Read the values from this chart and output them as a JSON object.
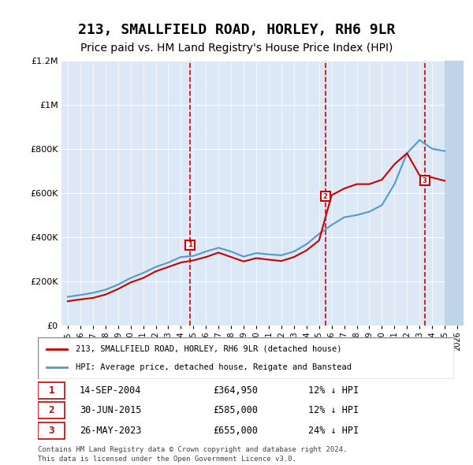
{
  "title": "213, SMALLFIELD ROAD, HORLEY, RH6 9LR",
  "subtitle": "Price paid vs. HM Land Registry's House Price Index (HPI)",
  "title_fontsize": 13,
  "subtitle_fontsize": 10,
  "ylabel_labels": [
    "£0",
    "£200K",
    "£400K",
    "£600K",
    "£800K",
    "£1M",
    "£1.2M"
  ],
  "ylabel_values": [
    0,
    200000,
    400000,
    600000,
    800000,
    1000000,
    1200000
  ],
  "ylim": [
    0,
    1200000
  ],
  "xlim_start": 1994.5,
  "xlim_end": 2026.5,
  "background_color": "#ffffff",
  "plot_bg_color": "#dce8f5",
  "hatch_color": "#c0d4e8",
  "grid_color": "#ffffff",
  "red_line_color": "#cc0000",
  "blue_line_color": "#5599cc",
  "transaction_marker_color": "#cc0000",
  "transactions": [
    {
      "year": 2004.71,
      "price": 364950,
      "label": "1",
      "date": "14-SEP-2004",
      "price_str": "£364,950",
      "hpi_pct": "12% ↓ HPI"
    },
    {
      "year": 2015.5,
      "price": 585000,
      "label": "2",
      "date": "30-JUN-2015",
      "price_str": "£585,000",
      "hpi_pct": "12% ↓ HPI"
    },
    {
      "year": 2023.4,
      "price": 655000,
      "label": "3",
      "date": "26-MAY-2023",
      "price_str": "£655,000",
      "hpi_pct": "24% ↓ HPI"
    }
  ],
  "legend_line1": "213, SMALLFIELD ROAD, HORLEY, RH6 9LR (detached house)",
  "legend_line2": "HPI: Average price, detached house, Reigate and Banstead",
  "footer_line1": "Contains HM Land Registry data © Crown copyright and database right 2024.",
  "footer_line2": "This data is licensed under the Open Government Licence v3.0.",
  "hpi_years": [
    1995,
    1996,
    1997,
    1998,
    1999,
    2000,
    2001,
    2002,
    2003,
    2004,
    2005,
    2006,
    2007,
    2008,
    2009,
    2010,
    2011,
    2012,
    2013,
    2014,
    2015,
    2016,
    2017,
    2018,
    2019,
    2020,
    2021,
    2022,
    2023,
    2024,
    2025
  ],
  "hpi_values": [
    130000,
    138000,
    148000,
    162000,
    185000,
    215000,
    238000,
    265000,
    285000,
    310000,
    315000,
    335000,
    352000,
    335000,
    312000,
    328000,
    322000,
    318000,
    335000,
    368000,
    415000,
    455000,
    490000,
    500000,
    515000,
    545000,
    640000,
    780000,
    840000,
    800000,
    790000
  ],
  "red_years": [
    1995,
    1996,
    1997,
    1998,
    1999,
    2000,
    2001,
    2002,
    2003,
    2004,
    2005,
    2006,
    2007,
    2008,
    2009,
    2010,
    2011,
    2012,
    2013,
    2014,
    2015,
    2016,
    2017,
    2018,
    2019,
    2020,
    2021,
    2022,
    2023,
    2024,
    2025
  ],
  "red_values": [
    110000,
    118000,
    125000,
    140000,
    165000,
    195000,
    215000,
    245000,
    265000,
    285000,
    295000,
    310000,
    330000,
    310000,
    290000,
    305000,
    298000,
    292000,
    310000,
    340000,
    385000,
    590000,
    620000,
    640000,
    640000,
    660000,
    730000,
    780000,
    680000,
    670000,
    655000
  ],
  "xtick_years": [
    1995,
    1996,
    1997,
    1998,
    1999,
    2000,
    2001,
    2002,
    2003,
    2004,
    2005,
    2006,
    2007,
    2008,
    2009,
    2010,
    2011,
    2012,
    2013,
    2014,
    2015,
    2016,
    2017,
    2018,
    2019,
    2020,
    2021,
    2022,
    2023,
    2024,
    2025,
    2026
  ],
  "stripe_years": [
    1995,
    1997,
    1999,
    2001,
    2003,
    2005,
    2007,
    2009,
    2011,
    2013,
    2015,
    2017,
    2019,
    2021,
    2023,
    2025
  ]
}
